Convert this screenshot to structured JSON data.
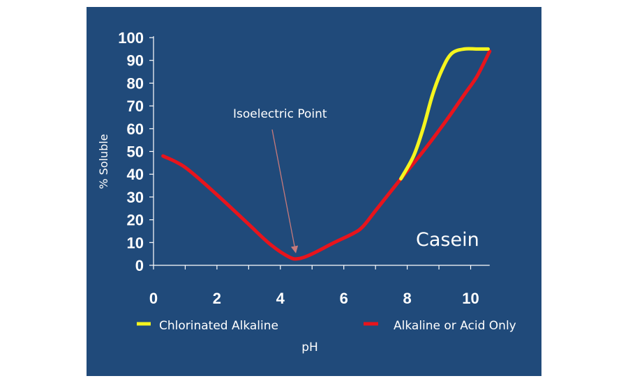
{
  "chart_data": {
    "type": "line",
    "xlabel": "pH",
    "ylabel": "% Soluble",
    "xlim": [
      0,
      11
    ],
    "ylim": [
      0,
      100
    ],
    "x_ticks": [
      "0",
      "2",
      "4",
      "6",
      "8",
      "10"
    ],
    "y_ticks": [
      "0",
      "10",
      "20",
      "30",
      "40",
      "50",
      "60",
      "70",
      "80",
      "90",
      "100"
    ],
    "series": [
      {
        "name": "Alkaline or Acid Only",
        "color": "#e8141c",
        "points": [
          [
            0.3,
            48
          ],
          [
            1.0,
            43
          ],
          [
            2.0,
            31
          ],
          [
            3.0,
            18
          ],
          [
            3.7,
            9
          ],
          [
            4.3,
            3.5
          ],
          [
            4.6,
            3
          ],
          [
            5.0,
            5
          ],
          [
            5.7,
            10
          ],
          [
            6.3,
            14
          ],
          [
            6.6,
            17
          ],
          [
            7.0,
            24
          ],
          [
            7.4,
            31
          ],
          [
            7.8,
            38
          ],
          [
            8.5,
            50
          ],
          [
            9.2,
            63
          ],
          [
            9.8,
            75
          ],
          [
            10.2,
            83
          ],
          [
            10.6,
            94
          ]
        ]
      },
      {
        "name": "Chlorinated Alkaline",
        "color": "#f5f51e",
        "points": [
          [
            7.8,
            38
          ],
          [
            8.2,
            48
          ],
          [
            8.5,
            60
          ],
          [
            8.8,
            75
          ],
          [
            9.1,
            86
          ],
          [
            9.4,
            93
          ],
          [
            9.8,
            95
          ],
          [
            10.2,
            95
          ],
          [
            10.55,
            95
          ]
        ]
      }
    ],
    "annotations": [
      {
        "text": "Isoelectric Point",
        "x": 4.5,
        "y": 3
      },
      {
        "text": "Casein"
      }
    ],
    "legend_position": "bottom"
  }
}
